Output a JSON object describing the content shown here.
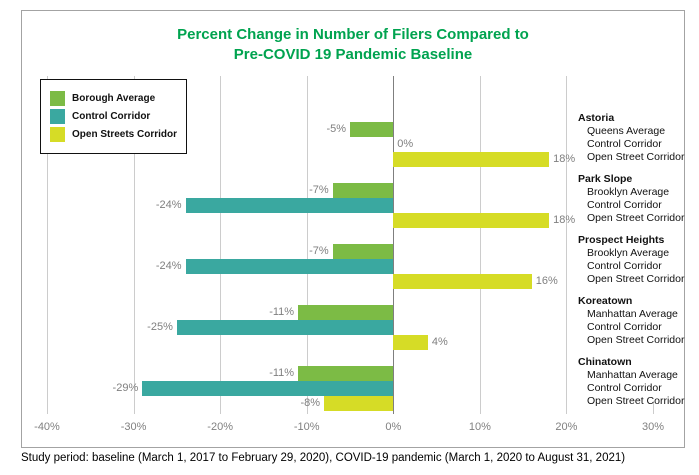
{
  "title": {
    "line1": "Percent Change in Number of Filers Compared to",
    "line2": "Pre-COVID 19 Pandemic Baseline"
  },
  "legend": {
    "items": [
      {
        "label": "Borough Average",
        "color": "#7CBB45"
      },
      {
        "label": "Control Corridor",
        "color": "#3AA8A0"
      },
      {
        "label": "Open Streets Corridor",
        "color": "#D6DC26"
      }
    ]
  },
  "chart_data": {
    "type": "bar",
    "orientation": "horizontal",
    "title": "Percent Change in Number of Filers Compared to Pre-COVID 19 Pandemic Baseline",
    "xlim": [
      -40,
      30
    ],
    "tick_step": 10,
    "ticks": [
      "-40%",
      "-30%",
      "-20%",
      "-10%",
      "0%",
      "10%",
      "20%",
      "30%"
    ],
    "grid": true,
    "gridline_color": "#CCCCCC",
    "zero_line_color": "#7F7F7F",
    "value_label_color": "#7F7F7F",
    "series_colors": {
      "Borough Average": "#7CBB45",
      "Control Corridor": "#3AA8A0",
      "Open Streets Corridor": "#D6DC26"
    },
    "groups": [
      {
        "name": "Astoria",
        "rows": [
          {
            "label": "Queens Average",
            "series": "Borough Average",
            "value": -5,
            "display": "-5%"
          },
          {
            "label": "Control Corridor",
            "series": "Control Corridor",
            "value": 0,
            "display": "0%"
          },
          {
            "label": "Open Street Corridor",
            "series": "Open Streets Corridor",
            "value": 18,
            "display": "18%"
          }
        ]
      },
      {
        "name": "Park Slope",
        "rows": [
          {
            "label": "Brooklyn Average",
            "series": "Borough Average",
            "value": -7,
            "display": "-7%"
          },
          {
            "label": "Control Corridor",
            "series": "Control Corridor",
            "value": -24,
            "display": "-24%"
          },
          {
            "label": "Open Street Corridor",
            "series": "Open Streets Corridor",
            "value": 18,
            "display": "18%"
          }
        ]
      },
      {
        "name": "Prospect Heights",
        "rows": [
          {
            "label": "Brooklyn Average",
            "series": "Borough Average",
            "value": -7,
            "display": "-7%"
          },
          {
            "label": "Control Corridor",
            "series": "Control Corridor",
            "value": -24,
            "display": "-24%"
          },
          {
            "label": "Open Street Corridor",
            "series": "Open Streets Corridor",
            "value": 16,
            "display": "16%"
          }
        ]
      },
      {
        "name": "Koreatown",
        "rows": [
          {
            "label": "Manhattan Average",
            "series": "Borough Average",
            "value": -11,
            "display": "-11%"
          },
          {
            "label": "Control Corridor",
            "series": "Control Corridor",
            "value": -25,
            "display": "-25%"
          },
          {
            "label": "Open Street Corridor",
            "series": "Open Streets Corridor",
            "value": 4,
            "display": "4%"
          }
        ]
      },
      {
        "name": "Chinatown",
        "rows": [
          {
            "label": "Manhattan Average",
            "series": "Borough Average",
            "value": -11,
            "display": "-11%"
          },
          {
            "label": "Control Corridor",
            "series": "Control Corridor",
            "value": -29,
            "display": "-29%"
          },
          {
            "label": "Open Street Corridor",
            "series": "Open Streets Corridor",
            "value": -8,
            "display": "-8%"
          }
        ]
      }
    ]
  },
  "footnote": "Study period: baseline (March 1, 2017 to February 29, 2020), COVID-19 pandemic (March 1, 2020 to August 31, 2021)"
}
